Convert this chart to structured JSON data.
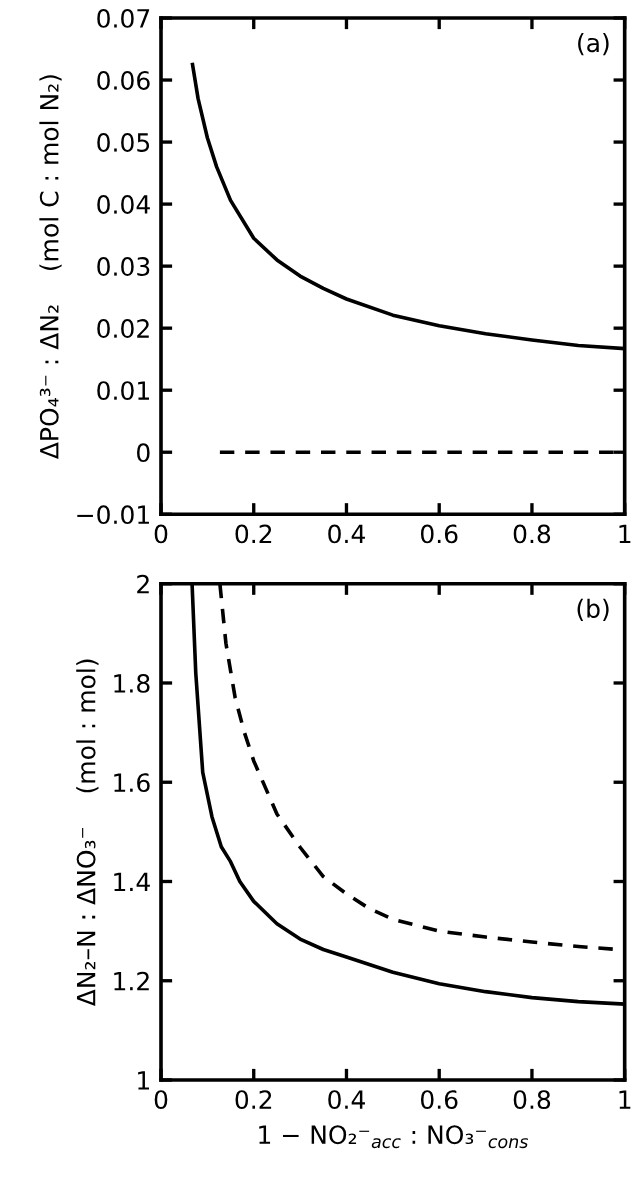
{
  "chart_data": [
    {
      "type": "line",
      "annotations": [
        "(a)"
      ],
      "ylabel": "ΔPO₄³⁻ : ΔN₂    (mol C : mol N₂)",
      "xlim": [
        0,
        1
      ],
      "ylim": [
        -0.01,
        0.07
      ],
      "xticks": [
        0,
        0.2,
        0.4,
        0.6,
        0.8,
        1
      ],
      "yticks": [
        -0.01,
        0,
        0.01,
        0.02,
        0.03,
        0.04,
        0.05,
        0.06,
        0.07
      ],
      "grid": false,
      "marker": "none",
      "series": [
        {
          "color": "#000000",
          "line_style": "solid",
          "x": [
            0.068,
            0.08,
            0.1,
            0.12,
            0.15,
            0.2,
            0.25,
            0.3,
            0.35,
            0.4,
            0.5,
            0.6,
            0.7,
            0.8,
            0.9,
            1
          ],
          "values": [
            0.0625,
            0.057,
            0.0507,
            0.046,
            0.0406,
            0.0345,
            0.031,
            0.0284,
            0.0264,
            0.0247,
            0.0221,
            0.0204,
            0.0191,
            0.0181,
            0.0172,
            0.0167
          ]
        },
        {
          "color": "#000000",
          "line_style": "dashed",
          "x": [
            0.127,
            1
          ],
          "values": [
            0,
            0
          ]
        }
      ]
    },
    {
      "type": "line",
      "annotations": [
        "(b)"
      ],
      "ylabel": "ΔN₂–N : ΔNO₃⁻    (mol : mol)",
      "xlabel": "1 − NO₂⁻$_{acc}$ : NO₃⁻$_{cons}$",
      "xlim": [
        0,
        1
      ],
      "ylim": [
        1,
        2
      ],
      "xticks": [
        0,
        0.2,
        0.4,
        0.6,
        0.8,
        1
      ],
      "yticks": [
        1,
        1.2,
        1.4,
        1.6,
        1.8,
        2
      ],
      "grid": false,
      "marker": "none",
      "series": [
        {
          "color": "#000000",
          "line_style": "solid",
          "x": [
            0.067,
            0.075,
            0.09,
            0.11,
            0.13,
            0.15,
            0.17,
            0.2,
            0.25,
            0.3,
            0.35,
            0.4,
            0.5,
            0.6,
            0.7,
            0.8,
            0.9,
            1
          ],
          "values": [
            2,
            1.82,
            1.62,
            1.53,
            1.47,
            1.44,
            1.4,
            1.36,
            1.315,
            1.284,
            1.263,
            1.248,
            1.217,
            1.194,
            1.178,
            1.166,
            1.158,
            1.153
          ]
        },
        {
          "color": "#000000",
          "line_style": "dashed",
          "x": [
            0.127,
            0.14,
            0.16,
            0.18,
            0.2,
            0.25,
            0.3,
            0.35,
            0.4,
            0.45,
            0.5,
            0.6,
            0.7,
            0.8,
            0.9,
            1
          ],
          "values": [
            2,
            1.88,
            1.77,
            1.7,
            1.643,
            1.536,
            1.469,
            1.41,
            1.375,
            1.345,
            1.324,
            1.3,
            1.288,
            1.278,
            1.269,
            1.262
          ]
        }
      ]
    }
  ]
}
